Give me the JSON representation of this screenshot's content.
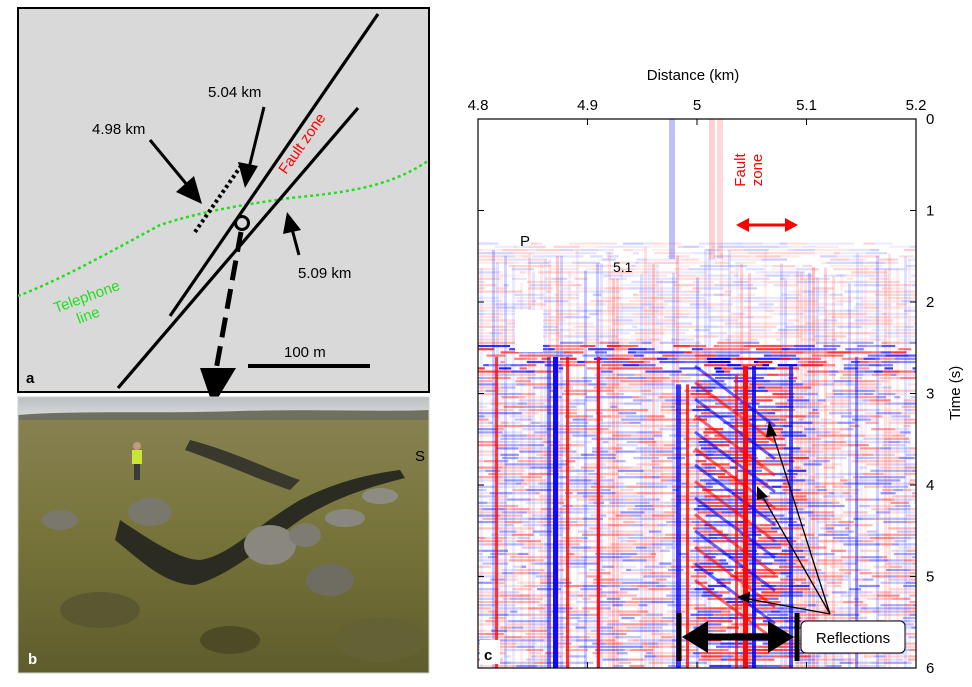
{
  "panel_a": {
    "label": "a",
    "fault_zone": "Fault zone",
    "telephone_line_1": "Telephone",
    "telephone_line_2": "line",
    "km_498": "4.98 km",
    "km_504": "5.04 km",
    "km_509": "5.09 km",
    "scale_bar": "100 m",
    "colors": {
      "background": "#d9d9d9",
      "fault": "#000000",
      "fault_label": "#ff0000",
      "telephone": "#22dd22"
    }
  },
  "panel_b": {
    "label": "b",
    "marker": "S",
    "colors": {
      "sky": "#c9ccce",
      "moss": "#7d7a3a",
      "rock": "#6d6a60"
    }
  },
  "panel_c": {
    "label": "c",
    "p_label": "P",
    "marker_51": "5.1",
    "fault_zone_1": "Fault",
    "fault_zone_2": "zone",
    "reflections": "Reflections",
    "colors": {
      "positive": "#ff0000",
      "negative": "#0000ff"
    }
  },
  "chart_data": {
    "type": "heatmap",
    "xlabel": "Distance (km)",
    "ylabel": "Time (s)",
    "xlim": [
      4.8,
      5.2
    ],
    "ylim": [
      0,
      6
    ],
    "x_ticks": [
      "4.8",
      "4.9",
      "5",
      "5.1",
      "5.2"
    ],
    "y_ticks": [
      "0",
      "1",
      "2",
      "3",
      "4",
      "5",
      "6"
    ]
  }
}
